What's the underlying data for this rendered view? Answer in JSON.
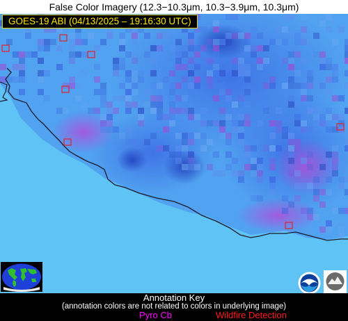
{
  "title": "False Color Imagery (12.3−10.3μm, 10.3−3.9μm, 10.3μm)",
  "timestamp": "GOES-19 ABI (04/13/2025 – 19:16:30 UTC)",
  "annotation_key": {
    "heading": "Annotation Key",
    "subheading": "(annotation colors are not related to colors in underlying image)",
    "pyrocb_label": "Pyro Cb",
    "wildfire_label": "Wildfire Detection"
  },
  "colors": {
    "ocean": "#5fc3f5",
    "cloud": "#3d6fe6",
    "pyro": "#ff00ff",
    "wildfire": "#ff1a1a",
    "stamp_text": "#ffe600"
  },
  "icons": {
    "globe": "globe-icon",
    "noaa": "noaa-logo-icon",
    "cimss": "cimss-logo-icon"
  }
}
